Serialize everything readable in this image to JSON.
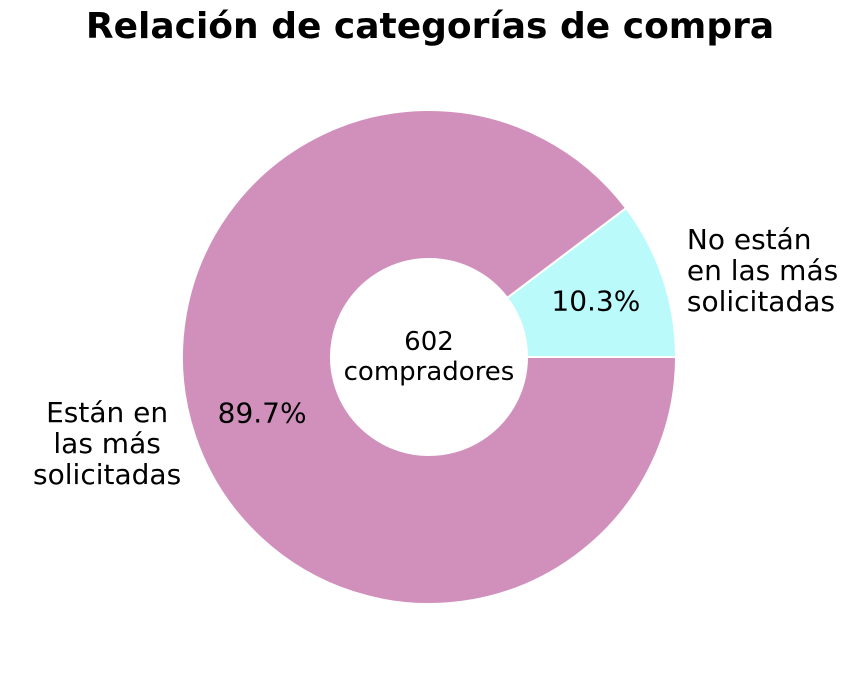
{
  "chart_data": {
    "type": "pie",
    "donut": true,
    "title": "Relación de categorías de compra",
    "center_label": [
      "602",
      "compradores"
    ],
    "slices": [
      {
        "label": [
          "No están",
          "en las más",
          "solicitadas"
        ],
        "value": 10.3,
        "percent_label": "10.3%",
        "color": "#bbfafb"
      },
      {
        "label": [
          "Están en",
          "las más",
          "solicitadas"
        ],
        "value": 89.7,
        "percent_label": "89.7%",
        "color": "#d190bb"
      }
    ]
  }
}
